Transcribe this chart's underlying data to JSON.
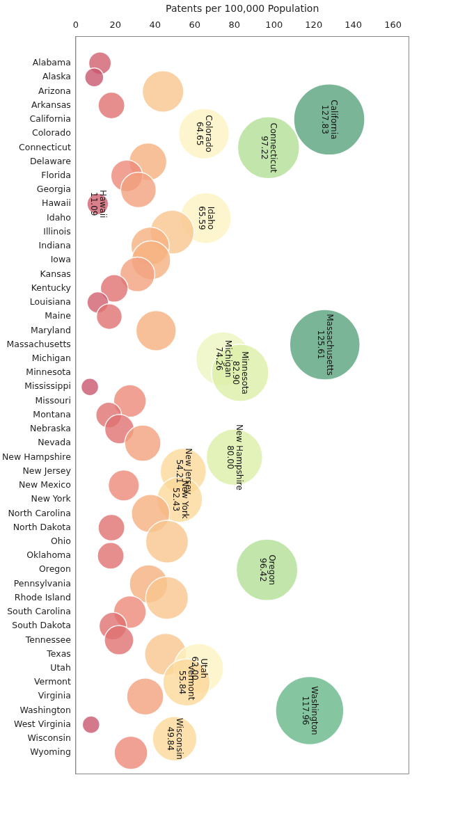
{
  "chart_data": {
    "type": "bubble",
    "orientation": "horizontal",
    "xlabel": "Patents per 100,000 Population",
    "xlim": [
      0,
      168
    ],
    "xticks": [
      0,
      20,
      40,
      60,
      80,
      100,
      120,
      140,
      160
    ],
    "categories": [
      "Alabama",
      "Alaska",
      "Arizona",
      "Arkansas",
      "California",
      "Colorado",
      "Connecticut",
      "Delaware",
      "Florida",
      "Georgia",
      "Hawaii",
      "Idaho",
      "Illinois",
      "Indiana",
      "Iowa",
      "Kansas",
      "Kentucky",
      "Louisiana",
      "Maine",
      "Maryland",
      "Massachusetts",
      "Michigan",
      "Minnesota",
      "Mississippi",
      "Missouri",
      "Montana",
      "Nebraska",
      "Nevada",
      "New Hampshire",
      "New Jersey",
      "New Mexico",
      "New York",
      "North Carolina",
      "North Dakota",
      "Ohio",
      "Oklahoma",
      "Oregon",
      "Pennsylvania",
      "Rhode Island",
      "South Carolina",
      "South Dakota",
      "Tennessee",
      "Texas",
      "Utah",
      "Vermont",
      "Virginia",
      "Washington",
      "West Virginia",
      "Wisconsin",
      "Wyoming"
    ],
    "values": [
      12.2,
      9.3,
      44.0,
      18.0,
      127.83,
      64.65,
      97.22,
      36.4,
      25.7,
      31.6,
      11.09,
      65.59,
      48.6,
      37.5,
      38.0,
      31.1,
      19.4,
      11.1,
      16.9,
      40.5,
      125.61,
      74.26,
      82.9,
      7.1,
      27.3,
      16.6,
      22.0,
      33.8,
      80.0,
      54.21,
      24.2,
      52.43,
      37.7,
      18.0,
      46.0,
      17.6,
      96.42,
      36.7,
      46.0,
      27.3,
      18.7,
      21.8,
      45.3,
      62.0,
      55.84,
      35.0,
      117.96,
      7.7,
      49.84,
      27.8
    ],
    "sizes": [
      0.1,
      0.07,
      0.34,
      0.14,
      1,
      0.51,
      0.76,
      0.28,
      0.2,
      0.25,
      0.09,
      0.51,
      0.38,
      0.29,
      0.3,
      0.24,
      0.15,
      0.09,
      0.13,
      0.32,
      0.98,
      0.58,
      0.65,
      0.06,
      0.21,
      0.13,
      0.17,
      0.26,
      0.63,
      0.42,
      0.19,
      0.41,
      0.29,
      0.14,
      0.36,
      0.14,
      0.75,
      0.29,
      0.36,
      0.21,
      0.15,
      0.17,
      0.35,
      0.49,
      0.44,
      0.27,
      0.92,
      0.06,
      0.39,
      0.22
    ],
    "colors": [
      "#d0606f",
      "#c9566e",
      "#f8c68e",
      "#e07070",
      "#5aa27e",
      "#fdf3c0",
      "#b3df97",
      "#f6b080",
      "#ec8a78",
      "#f2a07e",
      "#d0606f",
      "#fdf3c0",
      "#f8c68e",
      "#f6b080",
      "#f6b080",
      "#f2a07e",
      "#e07070",
      "#d0606f",
      "#e07070",
      "#f6b080",
      "#5aa27e",
      "#eef5c0",
      "#dcefa8",
      "#c9566e",
      "#ec8a78",
      "#e07070",
      "#e07070",
      "#f2a07e",
      "#dcefa8",
      "#fbd89a",
      "#ec8a78",
      "#fbd89a",
      "#f6b080",
      "#e07070",
      "#f8c68e",
      "#e07070",
      "#b3df97",
      "#f6b080",
      "#f8c68e",
      "#ec8a78",
      "#e07070",
      "#e07070",
      "#f8c68e",
      "#fdf3c0",
      "#fbd89a",
      "#f2a07e",
      "#66b88a",
      "#c9566e",
      "#fbd89a",
      "#ec8a78"
    ],
    "value_labels": [
      null,
      null,
      null,
      null,
      "California\n127.83",
      "Colorado\n64.65",
      "Connecticut\n97.22",
      null,
      null,
      null,
      "Hawaii\n11.09",
      "Idaho\n65.59",
      null,
      null,
      null,
      null,
      null,
      null,
      null,
      null,
      "Massachusetts\n125.61",
      "Michigan\n74.26",
      "Minnesota\n82.90",
      null,
      null,
      null,
      null,
      null,
      "New Hampshire\n80.00",
      "New Jersey\n54.21",
      null,
      "New York\n52.43",
      null,
      null,
      null,
      null,
      "Oregon\n96.42",
      null,
      null,
      null,
      null,
      null,
      null,
      "Utah\n62.00",
      "Vermont\n55.84",
      null,
      "Washington\n117.96",
      null,
      "Wisconsin\n49.84",
      null
    ]
  }
}
